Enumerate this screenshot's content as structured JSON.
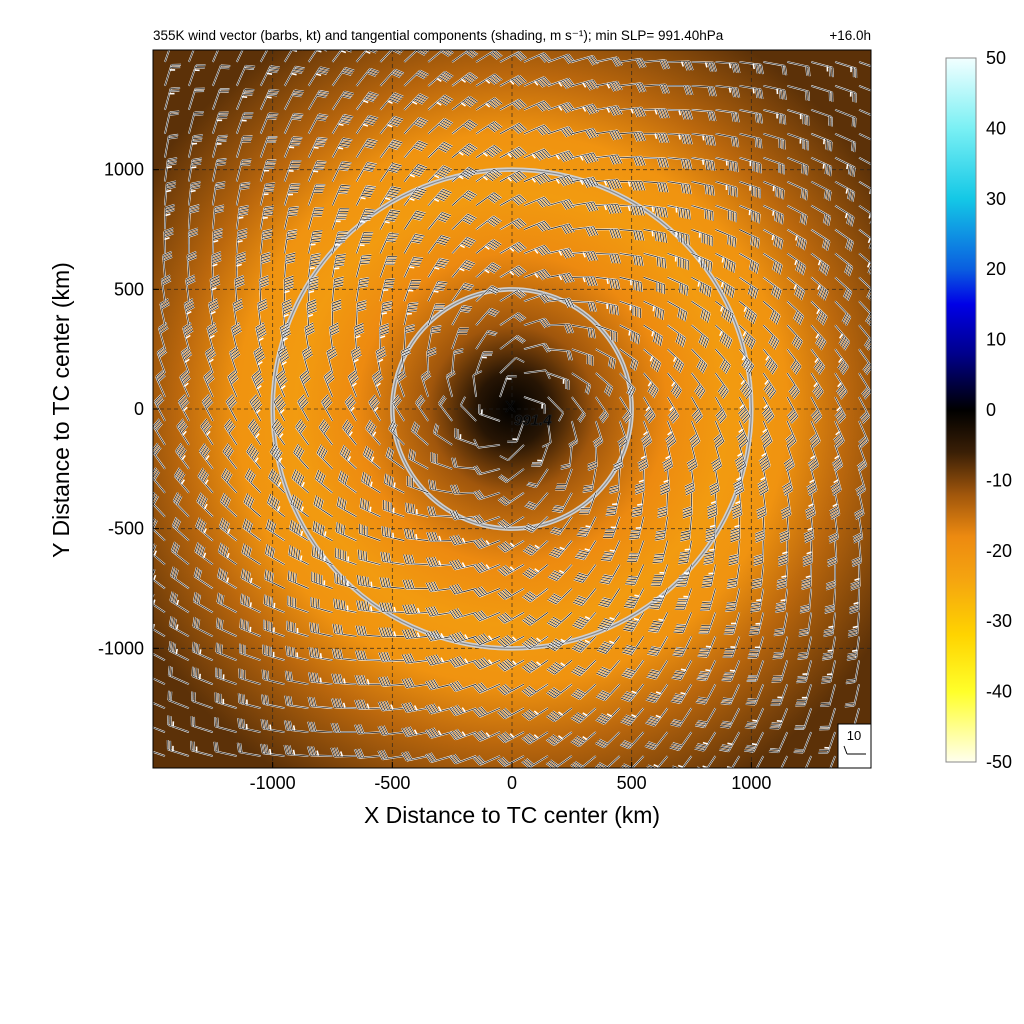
{
  "chart_data": {
    "type": "heatmap",
    "title": "355K wind vector (barbs, kt) and tangential components (shading, m s⁻¹); min SLP= 991.40hPa",
    "time_label": "+16.0h",
    "xlabel": "X Distance to TC center (km)",
    "ylabel": "Y Distance to TC center (km)",
    "xlim": [
      -1500,
      1500
    ],
    "ylim": [
      -1500,
      1500
    ],
    "xticks": [
      -1000,
      -500,
      0,
      500,
      1000
    ],
    "yticks": [
      -1000,
      -500,
      0,
      500,
      1000
    ],
    "x_tick_labels": [
      "-1000",
      "-500",
      "0",
      "500",
      "1000"
    ],
    "y_tick_labels": [
      "-1000",
      "-500",
      "0",
      "500",
      "1000"
    ],
    "grid": "dashed at ticks",
    "range_rings_km": [
      500,
      1000
    ],
    "center_marker": {
      "symbol": "X",
      "label": "991.4",
      "x": 0,
      "y": 0
    },
    "barb_reference": {
      "label": "10",
      "units": "kt"
    },
    "tangential_wind_field": {
      "description_points": [
        {
          "radius_km": 0,
          "value": 0
        },
        {
          "radius_km": 150,
          "value": -4
        },
        {
          "radius_km": 350,
          "value": -12
        },
        {
          "radius_km": 650,
          "value": -18
        },
        {
          "radius_km": 900,
          "value": -22
        },
        {
          "radius_km": 1150,
          "value": -20
        },
        {
          "radius_km": 1400,
          "value": -14
        },
        {
          "radius_km": 1800,
          "value": -8
        }
      ]
    },
    "colorbar": {
      "min": -50,
      "max": 50,
      "ticks": [
        50,
        40,
        30,
        20,
        10,
        0,
        -10,
        -20,
        -30,
        -40,
        -50
      ],
      "tick_labels": [
        "50",
        "40",
        "30",
        "20",
        "10",
        "0",
        "-10",
        "-20",
        "-30",
        "-40",
        "-50"
      ],
      "color_stops": [
        {
          "value": 50,
          "color": "#f2ffff"
        },
        {
          "value": 40,
          "color": "#7af0f4"
        },
        {
          "value": 30,
          "color": "#14c8e6"
        },
        {
          "value": 20,
          "color": "#0a5ee0"
        },
        {
          "value": 15,
          "color": "#0000e6"
        },
        {
          "value": 8,
          "color": "#00008c"
        },
        {
          "value": 0,
          "color": "#000000"
        },
        {
          "value": -6,
          "color": "#3a1f06"
        },
        {
          "value": -12,
          "color": "#a0560c"
        },
        {
          "value": -18,
          "color": "#ed8a10"
        },
        {
          "value": -24,
          "color": "#f5a410"
        },
        {
          "value": -32,
          "color": "#ffd400"
        },
        {
          "value": -40,
          "color": "#ffff2a"
        },
        {
          "value": -50,
          "color": "#ffffee"
        }
      ]
    }
  }
}
